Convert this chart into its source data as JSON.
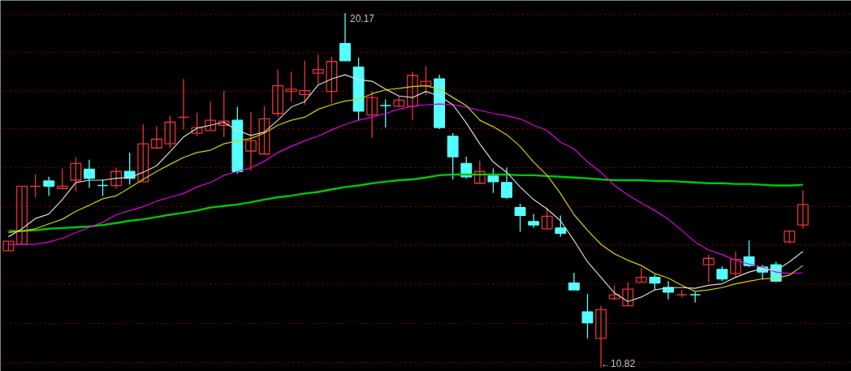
{
  "chart_data": {
    "type": "candlestick",
    "categories": [
      null,
      null,
      null,
      null,
      null,
      null,
      null,
      null,
      null,
      null,
      null,
      null,
      null,
      null,
      null,
      null,
      null,
      null,
      null,
      null,
      null,
      null,
      null,
      null,
      null,
      null,
      null,
      null,
      null,
      null,
      null,
      null,
      null,
      null,
      null,
      null,
      null,
      null,
      null,
      null,
      null,
      null,
      null,
      null,
      null,
      null,
      null,
      null,
      null,
      null,
      null,
      null,
      null,
      null,
      null,
      null,
      null,
      null,
      null,
      null
    ],
    "ohlc": [
      [
        13.9,
        14.15,
        13.9,
        14.15
      ],
      [
        14.07,
        15.6,
        14.07,
        15.6
      ],
      [
        15.6,
        15.91,
        15.31,
        15.6
      ],
      [
        15.74,
        15.85,
        15.35,
        15.6
      ],
      [
        15.54,
        16.07,
        15.54,
        15.6
      ],
      [
        15.76,
        16.36,
        15.47,
        16.2
      ],
      [
        16.05,
        16.3,
        15.56,
        15.81
      ],
      [
        15.62,
        15.78,
        15.35,
        15.62
      ],
      [
        15.62,
        16.09,
        15.54,
        15.99
      ],
      [
        15.99,
        16.49,
        15.64,
        15.81
      ],
      [
        15.72,
        17.23,
        15.72,
        16.72
      ],
      [
        16.61,
        17.19,
        16.61,
        16.84
      ],
      [
        16.72,
        17.46,
        16.61,
        17.29
      ],
      [
        17.42,
        18.43,
        17.09,
        17.42
      ],
      [
        17.0,
        17.54,
        16.92,
        17.15
      ],
      [
        17.07,
        17.83,
        17.07,
        17.34
      ],
      [
        17.21,
        18.12,
        16.9,
        17.32
      ],
      [
        17.34,
        17.69,
        15.93,
        15.99
      ],
      [
        16.53,
        17.56,
        16.01,
        16.8
      ],
      [
        16.45,
        17.71,
        16.45,
        17.38
      ],
      [
        17.52,
        18.68,
        17.44,
        18.25
      ],
      [
        18.1,
        18.62,
        17.83,
        18.16
      ],
      [
        18.02,
        18.91,
        17.75,
        18.12
      ],
      [
        18.58,
        19.07,
        18.29,
        18.68
      ],
      [
        18.1,
        19.01,
        17.79,
        18.89
      ],
      [
        19.36,
        20.17,
        18.91,
        18.91
      ],
      [
        18.74,
        18.99,
        17.34,
        17.58
      ],
      [
        17.48,
        18.1,
        16.88,
        17.94
      ],
      [
        17.73,
        17.89,
        17.15,
        17.73
      ],
      [
        17.71,
        17.98,
        17.71,
        17.87
      ],
      [
        17.71,
        18.62,
        17.34,
        18.52
      ],
      [
        18.25,
        18.76,
        18.0,
        18.37
      ],
      [
        18.43,
        18.54,
        17.11,
        17.15
      ],
      [
        16.92,
        17.0,
        15.78,
        16.38
      ],
      [
        16.2,
        16.38,
        15.81,
        15.85
      ],
      [
        15.68,
        16.28,
        15.68,
        15.99
      ],
      [
        15.87,
        16.07,
        15.43,
        15.72
      ],
      [
        15.7,
        16.09,
        15.27,
        15.31
      ],
      [
        15.04,
        15.14,
        14.4,
        14.83
      ],
      [
        14.67,
        14.87,
        14.5,
        14.58
      ],
      [
        14.48,
        15.04,
        14.48,
        14.81
      ],
      [
        14.5,
        14.83,
        14.27,
        14.36
      ],
      [
        13.05,
        13.32,
        12.87,
        12.87
      ],
      [
        12.29,
        12.76,
        11.59,
        12.0
      ],
      [
        11.59,
        12.45,
        10.82,
        12.35
      ],
      [
        12.64,
        12.99,
        12.6,
        12.74
      ],
      [
        12.45,
        13.07,
        12.45,
        12.89
      ],
      [
        13.07,
        13.45,
        13.07,
        13.2
      ],
      [
        13.2,
        13.28,
        12.87,
        13.05
      ],
      [
        12.93,
        13.1,
        12.62,
        12.81
      ],
      [
        12.74,
        12.87,
        12.68,
        12.74
      ],
      [
        12.74,
        12.81,
        12.54,
        12.74
      ],
      [
        13.53,
        13.8,
        13.07,
        13.7
      ],
      [
        13.41,
        13.49,
        13.1,
        13.16
      ],
      [
        13.3,
        13.88,
        13.22,
        13.67
      ],
      [
        13.74,
        14.17,
        13.47,
        13.51
      ],
      [
        13.47,
        13.53,
        13.14,
        13.34
      ],
      [
        13.53,
        13.61,
        13.1,
        13.1
      ],
      [
        14.13,
        14.42,
        14.09,
        14.42
      ],
      [
        14.58,
        15.5,
        14.48,
        15.12
      ]
    ],
    "colors": [
      "#e83535",
      "#e83535",
      "#e83535",
      "#54ffff",
      "#e83535",
      "#e83535",
      "#54ffff",
      "#54ffff",
      "#e83535",
      "#54ffff",
      "#e83535",
      "#e83535",
      "#e83535",
      "#e83535",
      "#e83535",
      "#e83535",
      "#e83535",
      "#54ffff",
      "#e83535",
      "#e83535",
      "#e83535",
      "#e83535",
      "#e83535",
      "#e83535",
      "#e83535",
      "#54ffff",
      "#54ffff",
      "#e83535",
      "#54ffff",
      "#e83535",
      "#e83535",
      "#e83535",
      "#54ffff",
      "#54ffff",
      "#54ffff",
      "#e83535",
      "#54ffff",
      "#54ffff",
      "#54ffff",
      "#54ffff",
      "#e83535",
      "#54ffff",
      "#54ffff",
      "#54ffff",
      "#e83535",
      "#e83535",
      "#e83535",
      "#e83535",
      "#54ffff",
      "#54ffff",
      "#e83535",
      "#54ffff",
      "#e83535",
      "#54ffff",
      "#e83535",
      "#54ffff",
      "#54ffff",
      "#54ffff",
      "#e83535",
      "#e83535"
    ],
    "series": [
      {
        "type": "line",
        "color": "#00c800",
        "values": [
          14.42,
          14.42,
          14.44,
          14.48,
          14.5,
          14.52,
          14.54,
          14.58,
          14.63,
          14.69,
          14.73,
          14.79,
          14.85,
          14.9,
          14.96,
          15.04,
          15.08,
          15.12,
          15.18,
          15.25,
          15.31,
          15.35,
          15.41,
          15.45,
          15.52,
          15.58,
          15.62,
          15.68,
          15.72,
          15.76,
          15.78,
          15.83,
          15.89,
          15.91,
          15.91,
          15.91,
          15.91,
          15.91,
          15.89,
          15.89,
          15.87,
          15.85,
          15.83,
          15.81,
          15.78,
          15.76,
          15.76,
          15.76,
          15.74,
          15.74,
          15.72,
          15.7,
          15.68,
          15.68,
          15.66,
          15.66,
          15.64,
          15.62,
          15.62,
          15.64
        ]
      },
      {
        "type": "line",
        "color": "#e000e0",
        "values": [
          14.07,
          14.07,
          14.07,
          14.13,
          14.23,
          14.38,
          14.52,
          14.65,
          14.85,
          14.96,
          15.06,
          15.21,
          15.31,
          15.41,
          15.58,
          15.7,
          15.89,
          15.99,
          16.09,
          16.26,
          16.49,
          16.65,
          16.8,
          16.92,
          17.09,
          17.23,
          17.34,
          17.42,
          17.52,
          17.63,
          17.71,
          17.75,
          17.77,
          17.75,
          17.69,
          17.6,
          17.52,
          17.46,
          17.38,
          17.21,
          17.07,
          16.76,
          16.59,
          16.24,
          15.97,
          15.62,
          15.37,
          15.16,
          14.96,
          14.73,
          14.44,
          14.13,
          13.92,
          13.8,
          13.65,
          13.55,
          13.47,
          13.34,
          13.3,
          13.32
        ]
      },
      {
        "type": "line",
        "color": "#d2d200",
        "values": [
          14.38,
          14.42,
          14.48,
          14.61,
          14.73,
          14.94,
          15.1,
          15.27,
          15.35,
          15.56,
          15.78,
          15.99,
          16.18,
          16.36,
          16.49,
          16.55,
          16.72,
          16.8,
          16.86,
          17.0,
          17.21,
          17.34,
          17.42,
          17.63,
          17.75,
          17.85,
          17.89,
          18.04,
          18.14,
          18.18,
          18.23,
          18.25,
          18.16,
          17.94,
          17.73,
          17.34,
          17.17,
          16.96,
          16.65,
          16.24,
          15.89,
          15.41,
          14.85,
          14.44,
          14.07,
          13.82,
          13.65,
          13.51,
          13.3,
          13.18,
          12.99,
          12.83,
          12.87,
          12.93,
          13.03,
          13.1,
          13.16,
          13.18,
          13.26,
          13.51
        ]
      },
      {
        "type": "line",
        "color": "#d8d8d8",
        "values": [
          14.27,
          14.48,
          14.75,
          14.87,
          15.25,
          15.7,
          15.76,
          15.76,
          15.81,
          15.83,
          15.97,
          16.14,
          16.51,
          16.9,
          17.13,
          17.21,
          17.29,
          17.07,
          16.94,
          17.03,
          17.34,
          17.69,
          17.83,
          18.27,
          18.43,
          18.54,
          18.41,
          18.37,
          18.16,
          17.98,
          17.94,
          18.1,
          17.98,
          17.75,
          17.27,
          16.72,
          16.24,
          15.97,
          15.58,
          15.25,
          15.0,
          14.69,
          14.17,
          13.61,
          13.2,
          12.79,
          12.56,
          12.68,
          12.87,
          12.93,
          12.93,
          12.91,
          12.99,
          13.03,
          13.2,
          13.34,
          13.43,
          13.38,
          13.61,
          13.88
        ]
      }
    ],
    "ylim": [
      10.72,
      20.5
    ],
    "yticks": [
      {
        "value": 20.13,
        "label": null
      },
      {
        "value": 19.14,
        "label": null
      },
      {
        "value": 18.1,
        "label": null
      },
      {
        "value": 17.11,
        "label": null
      },
      {
        "value": 16.09,
        "label": null
      },
      {
        "value": 15.06,
        "label": null
      },
      {
        "value": 14.05,
        "label": null
      },
      {
        "value": 13.03,
        "label": null
      },
      {
        "value": 11.99,
        "label": null
      },
      {
        "value": 10.96,
        "label": null
      }
    ],
    "grid": "y",
    "annotations": [
      "20.17",
      "←10.82"
    ]
  }
}
